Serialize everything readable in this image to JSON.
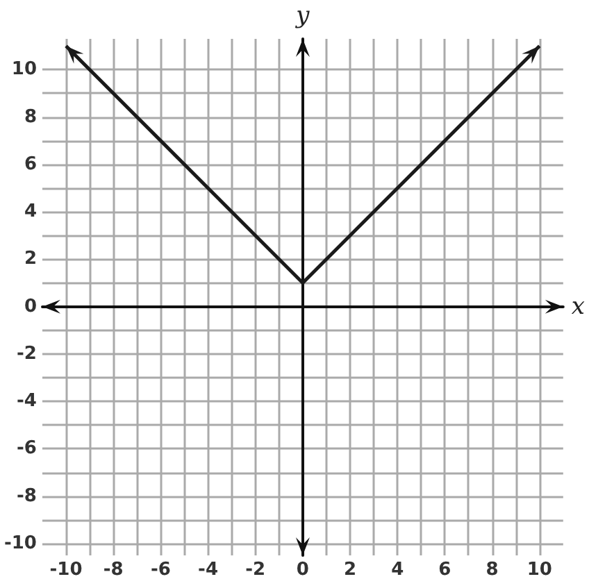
{
  "chart_data": {
    "type": "line",
    "xlabel": "x",
    "ylabel": "y",
    "x": [
      -10,
      0,
      10
    ],
    "series": [
      {
        "color": "#1a1a1a",
        "values": [
          11,
          1,
          11
        ]
      }
    ],
    "xlim": [
      -11,
      11
    ],
    "ylim": [
      -10.5,
      11.3
    ],
    "xticks": [
      -10,
      {
        "value": -9,
        "label": null
      },
      -8,
      {
        "value": -7,
        "label": null
      },
      -6,
      {
        "value": -5,
        "label": null
      },
      -4,
      {
        "value": -3,
        "label": null
      },
      -2,
      {
        "value": -1,
        "label": null
      },
      0,
      {
        "value": 1,
        "label": null
      },
      2,
      {
        "value": 3,
        "label": null
      },
      4,
      {
        "value": 5,
        "label": null
      },
      6,
      {
        "value": 7,
        "label": null
      },
      8,
      {
        "value": 9,
        "label": null
      },
      10
    ],
    "yticks": [
      -10,
      {
        "value": -9,
        "label": null
      },
      -8,
      {
        "value": -7,
        "label": null
      },
      -6,
      {
        "value": -5,
        "label": null
      },
      -4,
      {
        "value": -3,
        "label": null
      },
      -2,
      {
        "value": -1,
        "label": null
      },
      0,
      {
        "value": 1,
        "label": null
      },
      2,
      {
        "value": 3,
        "label": null
      },
      4,
      {
        "value": 5,
        "label": null
      },
      6,
      {
        "value": 7,
        "label": null
      },
      8,
      {
        "value": 9,
        "label": null
      },
      10
    ],
    "grid": true,
    "marker": "none",
    "line_style": "solid"
  }
}
